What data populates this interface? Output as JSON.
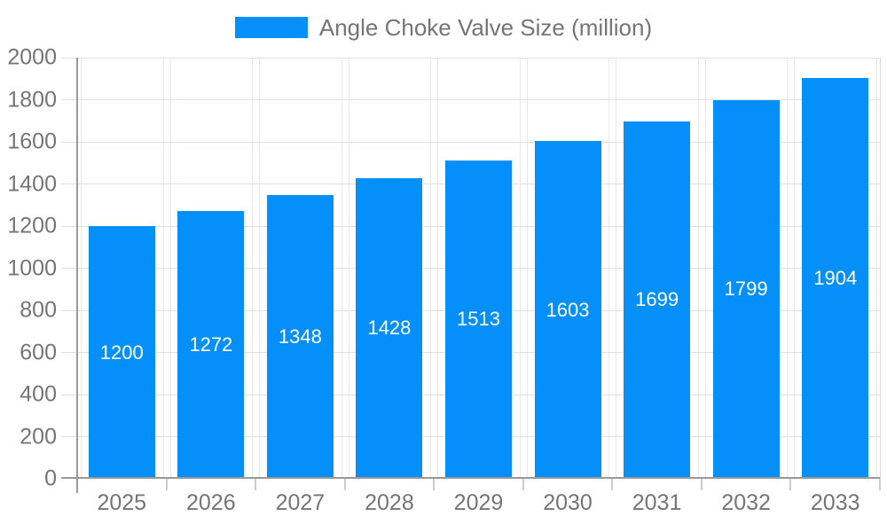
{
  "legend": {
    "label": "Angle Choke Valve Size (million)"
  },
  "chart_data": {
    "type": "bar",
    "title": "Angle Choke Valve Size (million)",
    "series_name": "Angle Choke Valve Size (million)",
    "categories": [
      "2025",
      "2026",
      "2027",
      "2028",
      "2029",
      "2030",
      "2031",
      "2032",
      "2033"
    ],
    "values": [
      1200,
      1272,
      1348,
      1428,
      1513,
      1603,
      1699,
      1799,
      1904
    ],
    "value_labels": [
      "1200",
      "1272",
      "1348",
      "1428",
      "1513",
      "1603",
      "1699",
      "1799",
      "1904"
    ],
    "xlabel": "",
    "ylabel": "",
    "ylim": [
      0,
      2000
    ],
    "ytick_step": 200,
    "y_tick_labels": [
      "0",
      "200",
      "400",
      "600",
      "800",
      "1000",
      "1200",
      "1400",
      "1600",
      "1800",
      "2000"
    ],
    "grid": true,
    "legend_position": "top-center",
    "colors": {
      "bar": "#0590F9",
      "bar_value_label": "#FFFFFF",
      "axis_text": "#757575",
      "legend_text": "#757575",
      "gridline": "#E0E0E0",
      "vertical_gridline": "#E9E9E9",
      "axis_line": "#999999",
      "plot_border": "#D9D9D9",
      "background": "#FFFFFF"
    }
  }
}
